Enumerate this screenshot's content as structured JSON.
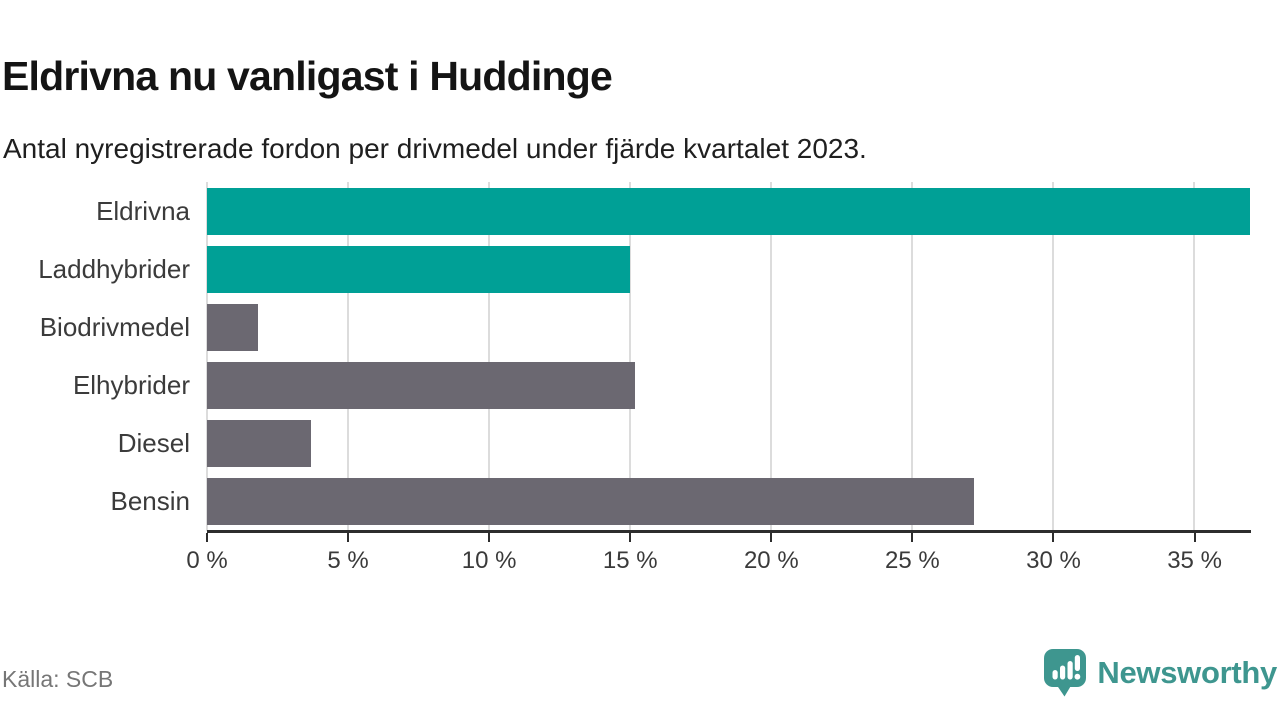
{
  "chart_data": {
    "type": "bar",
    "orientation": "horizontal",
    "title": "Eldrivna nu vanligast i Huddinge",
    "subtitle": "Antal nyregistrerade fordon per drivmedel under fjärde kvartalet 2023.",
    "categories": [
      "Eldrivna",
      "Laddhybrider",
      "Biodrivmedel",
      "Elhybrider",
      "Diesel",
      "Bensin"
    ],
    "values": [
      37.0,
      15.0,
      1.8,
      15.2,
      3.7,
      27.2
    ],
    "unit": "%",
    "bar_palette": [
      "#00a096",
      "#00a096",
      "#6b6871",
      "#6b6871",
      "#6b6871",
      "#6b6871"
    ],
    "highlight_color": "#00a096",
    "default_color": "#6b6871",
    "xlim": [
      0,
      37
    ],
    "x_tick_step": 5,
    "x_tick_labels": [
      "0 %",
      "5 %",
      "10 %",
      "15 %",
      "20 %",
      "25 %",
      "30 %",
      "35 %"
    ],
    "grid": true,
    "gridline_color": "#dcdcdc",
    "legend": false
  },
  "footer": {
    "source": "Källa: SCB",
    "brand": "Newsworthy",
    "brand_color": "#3e968f",
    "logo_icon": "bar-chart-speech-bubble"
  }
}
